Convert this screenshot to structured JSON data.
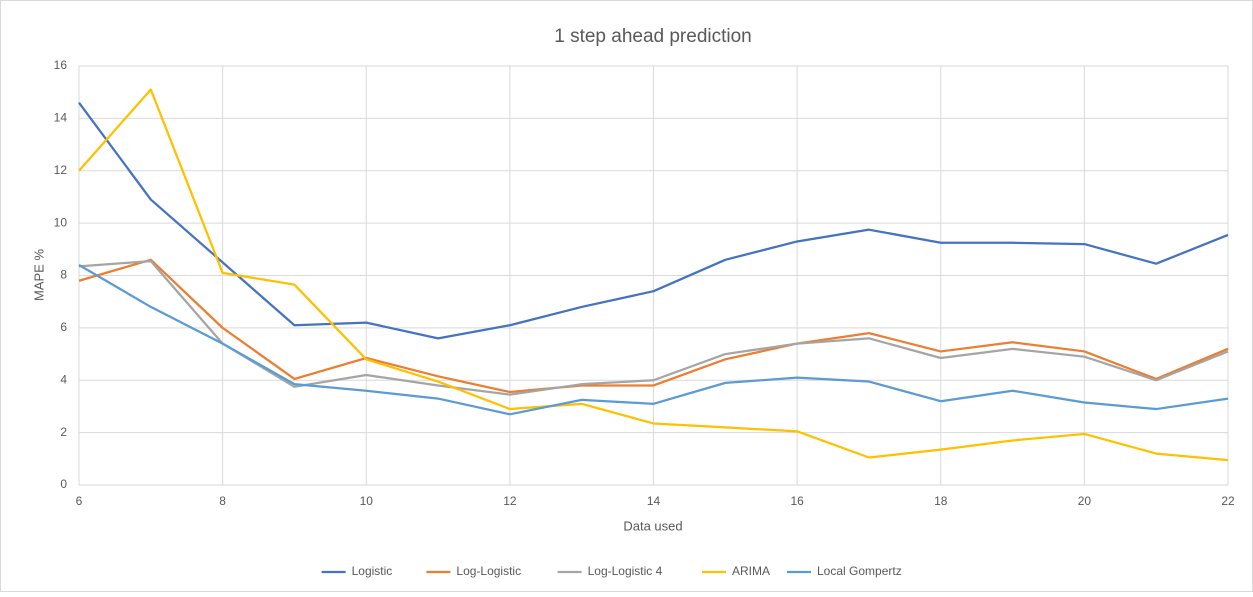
{
  "chart_data": {
    "type": "line",
    "title": "1 step ahead prediction",
    "x_label": "Data used",
    "y_label": "MAPE %",
    "x": [
      6,
      7,
      8,
      9,
      10,
      11,
      12,
      13,
      14,
      15,
      16,
      17,
      18,
      19,
      20,
      21,
      22
    ],
    "series": [
      {
        "name": "Logistic",
        "color": "#4472c4",
        "values": [
          14.6,
          10.9,
          8.5,
          6.1,
          6.2,
          5.6,
          6.1,
          6.8,
          7.4,
          8.6,
          9.3,
          9.75,
          9.25,
          9.25,
          9.2,
          8.45,
          9.55
        ]
      },
      {
        "name": "Log-Logistic",
        "color": "#ed7d31",
        "values": [
          7.8,
          8.6,
          6.0,
          4.05,
          4.85,
          4.15,
          3.55,
          3.8,
          3.8,
          4.8,
          5.4,
          5.8,
          5.1,
          5.45,
          5.1,
          4.05,
          5.2
        ]
      },
      {
        "name": "Log-Logistic 4",
        "color": "#a5a5a5",
        "values": [
          8.35,
          8.55,
          5.4,
          3.75,
          4.2,
          3.8,
          3.45,
          3.85,
          4.0,
          5.0,
          5.4,
          5.6,
          4.85,
          5.2,
          4.9,
          4.0,
          5.1
        ]
      },
      {
        "name": "ARIMA",
        "color": "#ffc000",
        "values": [
          12.0,
          15.1,
          8.1,
          7.65,
          4.8,
          3.95,
          2.9,
          3.1,
          2.35,
          2.2,
          2.05,
          1.05,
          1.35,
          1.7,
          1.95,
          1.2,
          0.95
        ]
      },
      {
        "name": "Local Gompertz",
        "color": "#5b9bd5",
        "values": [
          8.4,
          6.8,
          5.4,
          3.85,
          3.6,
          3.3,
          2.7,
          3.25,
          3.1,
          3.9,
          4.1,
          3.95,
          3.2,
          3.6,
          3.15,
          2.9,
          3.3
        ]
      }
    ],
    "xlim": [
      6,
      22
    ],
    "xticks": [
      6,
      8,
      10,
      12,
      14,
      16,
      18,
      20,
      22
    ],
    "ylim": [
      0,
      16
    ],
    "yticks": [
      0,
      2,
      4,
      6,
      8,
      10,
      12,
      14,
      16
    ],
    "grid": true,
    "legend": "bottom"
  }
}
